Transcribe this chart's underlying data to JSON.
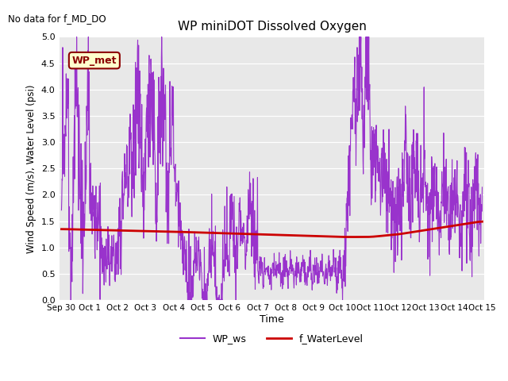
{
  "title": "WP miniDOT Dissolved Oxygen",
  "no_data_text": "No data for f_MD_DO",
  "wp_met_label": "WP_met",
  "ylabel": "Wind Speed (m/s), Water Level (psi)",
  "xlabel": "Time",
  "ylim": [
    0.0,
    5.0
  ],
  "yticks": [
    0.0,
    0.5,
    1.0,
    1.5,
    2.0,
    2.5,
    3.0,
    3.5,
    4.0,
    4.5,
    5.0
  ],
  "ws_color": "#9933CC",
  "wl_color": "#CC0000",
  "legend_wp_met_bg": "#FFFFCC",
  "legend_wp_met_border": "#8B0000",
  "legend_entries": [
    "WP_ws",
    "f_WaterLevel"
  ],
  "plot_bg": "#E8E8E8"
}
